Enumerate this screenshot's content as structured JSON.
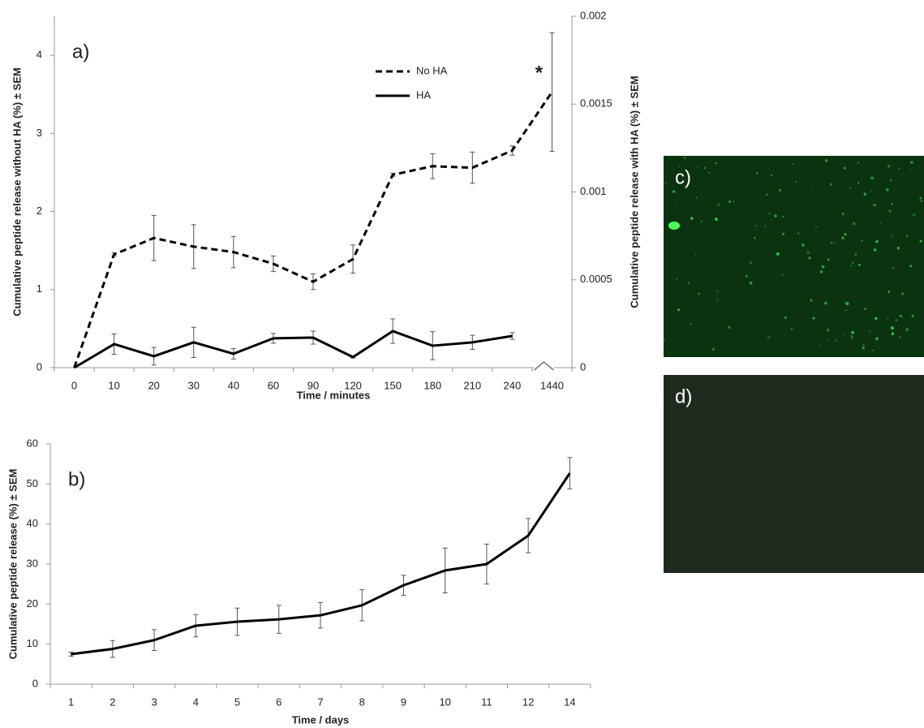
{
  "chart_data": [
    {
      "type": "line",
      "panel_label": "a)",
      "x_label": "Time / minutes",
      "y_label": "Cumulative peptide release without HA (%) ± SEM",
      "y2_label": "Cumulative peptide release with HA (%) ± SEM",
      "categories": [
        "0",
        "10",
        "20",
        "30",
        "40",
        "60",
        "90",
        "120",
        "150",
        "180",
        "210",
        "240",
        "1440"
      ],
      "ylim": [
        0,
        4.5
      ],
      "yticks": [
        0,
        1,
        2,
        3,
        4
      ],
      "y2lim": [
        0,
        0.002
      ],
      "y2ticks": [
        0,
        0.0005,
        0.001,
        0.0015,
        0.002
      ],
      "legend": "upper center",
      "annotation": "*",
      "series": [
        {
          "name": "No HA",
          "color": "#000000",
          "line_style": "dashed",
          "values": [
            0,
            1.45,
            1.66,
            1.55,
            1.48,
            1.33,
            1.1,
            1.39,
            2.47,
            2.58,
            2.56,
            2.78,
            3.53
          ],
          "errors": [
            null,
            0.02,
            0.29,
            0.28,
            0.2,
            0.1,
            0.1,
            0.18,
            0.02,
            0.16,
            0.2,
            0.06,
            0.76
          ]
        },
        {
          "name": "HA",
          "color": "#000000",
          "line_style": "solid",
          "axis": "y2",
          "values": [
            0,
            0.000134,
            6.5e-05,
            0.000144,
            7.9e-05,
            0.000167,
            0.000171,
            6e-05,
            0.000208,
            0.000125,
            0.000144,
            0.00018,
            null
          ],
          "errors": [
            null,
            5.8e-05,
            5e-05,
            8.6e-05,
            3e-05,
            2.8e-05,
            3.7e-05,
            5e-06,
            7e-05,
            8e-05,
            4e-05,
            1.9e-05,
            null
          ]
        }
      ]
    },
    {
      "type": "line",
      "panel_label": "b)",
      "x_label": "Time / days",
      "y_label": "Cumulative peptide release (%) ± SEM",
      "categories": [
        "1",
        "2",
        "3",
        "4",
        "5",
        "6",
        "7",
        "8",
        "9",
        "10",
        "11",
        "12",
        "14"
      ],
      "ylim": [
        0,
        60
      ],
      "yticks": [
        0,
        10,
        20,
        30,
        40,
        50,
        60
      ],
      "series": [
        {
          "color": "#000000",
          "line_style": "solid",
          "values": [
            7.5,
            8.8,
            11,
            14.6,
            15.6,
            16.2,
            17.2,
            19.7,
            24.7,
            28.4,
            30,
            37.1,
            52.7
          ],
          "errors": [
            0.5,
            2.1,
            2.6,
            2.8,
            3.4,
            3.5,
            3.2,
            3.9,
            2.5,
            5.6,
            5,
            4.3,
            3.9
          ]
        }
      ]
    }
  ],
  "images": [
    {
      "label": "c)"
    },
    {
      "label": "d)"
    }
  ]
}
